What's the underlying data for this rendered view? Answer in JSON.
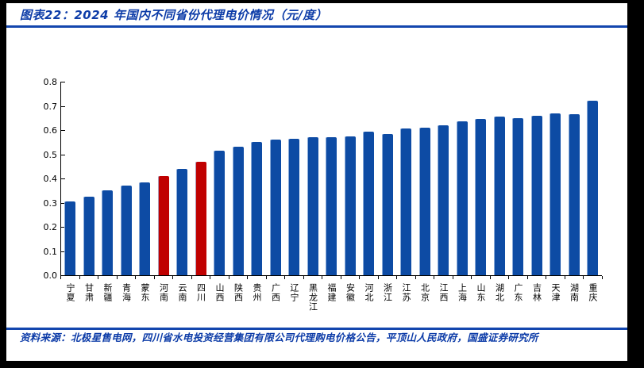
{
  "header": {
    "title": "图表22：2024 年国内不同省份代理电价情况（元/度）"
  },
  "footer": {
    "source": "资料来源：北极星售电网，四川省水电投资经营集团有限公司代理购电价格公告，平顶山人民政府，国盛证券研究所"
  },
  "colors": {
    "bar_blue": "#0d4ba4",
    "bar_highlight_red": "#c00000",
    "accent_blue": "#0d3ca8",
    "rule_blue": "#1346ae",
    "frame_black": "#000000",
    "axis_black": "#000000"
  },
  "chart_data": {
    "type": "bar",
    "title": "2024 年国内不同省份代理电价情况（元/度）",
    "unit": "元/度",
    "categories": [
      "宁夏",
      "甘肃",
      "新疆",
      "青海",
      "蒙东",
      "河南",
      "云南",
      "四川",
      "山西",
      "陕西",
      "贵州",
      "广西",
      "辽宁",
      "黑龙江",
      "福建",
      "安徽",
      "河北",
      "浙江",
      "江苏",
      "北京",
      "江西",
      "上海",
      "山东",
      "湖北",
      "广东",
      "吉林",
      "天津",
      "湖南",
      "重庆"
    ],
    "values": [
      0.305,
      0.325,
      0.35,
      0.37,
      0.385,
      0.41,
      0.44,
      0.47,
      0.515,
      0.53,
      0.55,
      0.56,
      0.565,
      0.57,
      0.57,
      0.575,
      0.595,
      0.585,
      0.605,
      0.61,
      0.62,
      0.635,
      0.645,
      0.655,
      0.65,
      0.66,
      0.67,
      0.665,
      0.72
    ],
    "highlighted_categories": [
      "河南",
      "四川"
    ],
    "xlabel": "",
    "ylabel": "",
    "ylim": [
      0,
      0.8
    ],
    "ytick_step": 0.1,
    "ytick_labels": [
      "0.0",
      "0.1",
      "0.2",
      "0.3",
      "0.4",
      "0.5",
      "0.6",
      "0.7",
      "0.8"
    ],
    "grid": false,
    "legend": false
  }
}
